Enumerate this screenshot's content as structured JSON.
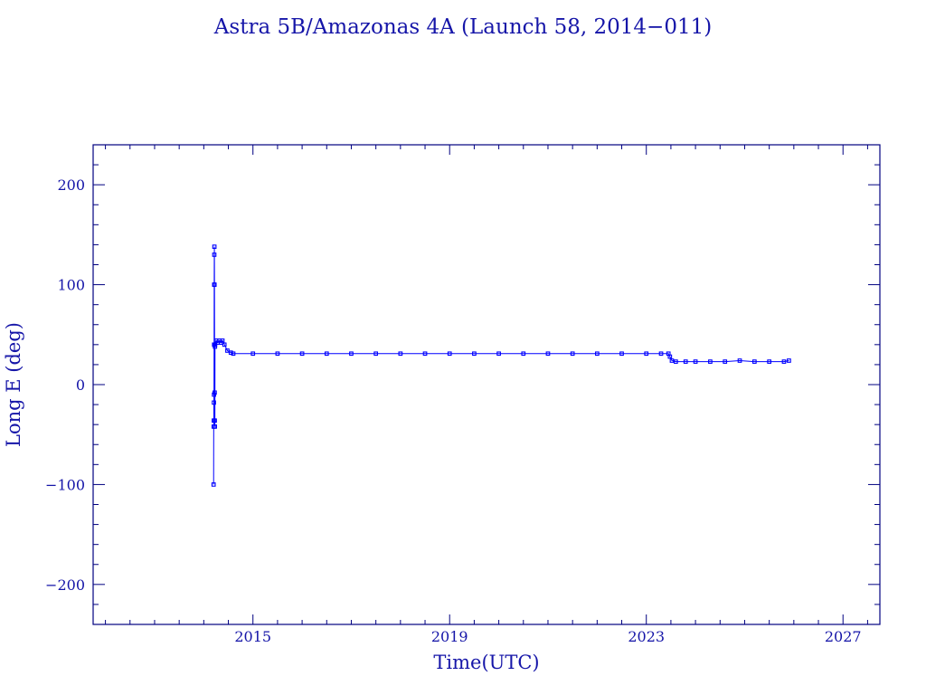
{
  "chart_data": {
    "type": "line",
    "title": "Astra 5B/Amazonas 4A (Launch 58, 2014−011)",
    "xlabel": "Time(UTC)",
    "ylabel": "Long E (deg)",
    "xlim": [
      2011.75,
      2027.75
    ],
    "ylim": [
      -240,
      240
    ],
    "x_ticks": [
      2015,
      2019,
      2023,
      2027
    ],
    "x_tick_labels": [
      "2015",
      "2019",
      "2023",
      "2027"
    ],
    "y_ticks": [
      200,
      100,
      0,
      -100,
      -200
    ],
    "y_tick_labels": [
      "200",
      "100",
      "0",
      "−100",
      "−200"
    ],
    "grid": false,
    "colors": {
      "axes": "#000080",
      "text": "#1515a8",
      "series": "#0000ff"
    },
    "series": [
      {
        "marker": "square",
        "x": [
          2014.2,
          2014.202,
          2014.204,
          2014.206,
          2014.208,
          2014.21,
          2014.212,
          2014.214,
          2014.216,
          2014.218,
          2014.22,
          2014.222,
          2014.224,
          2014.226,
          2014.228,
          2014.23,
          2014.25,
          2014.28,
          2014.32,
          2014.35,
          2014.38,
          2014.42,
          2014.48,
          2014.55,
          2014.6,
          2015.0,
          2015.5,
          2016.0,
          2016.5,
          2017.0,
          2017.5,
          2018.0,
          2018.5,
          2019.0,
          2019.5,
          2020.0,
          2020.5,
          2021.0,
          2021.5,
          2022.0,
          2022.5,
          2023.0,
          2023.3,
          2023.45,
          2023.48,
          2023.52,
          2023.6,
          2023.8,
          2024.0,
          2024.3,
          2024.6,
          2024.9,
          2025.2,
          2025.5,
          2025.8,
          2025.9
        ],
        "y": [
          -100,
          -42,
          -36,
          -18,
          -10,
          40,
          100,
          130,
          138,
          100,
          40,
          -8,
          -36,
          -42,
          38,
          40,
          44,
          42,
          44,
          42,
          44,
          40,
          34,
          32,
          31,
          31,
          31,
          31,
          31,
          31,
          31,
          31,
          31,
          31,
          31,
          31,
          31,
          31,
          31,
          31,
          31,
          31,
          31,
          31,
          28,
          24,
          23,
          23,
          23,
          23,
          23,
          24,
          23,
          23,
          23,
          24
        ]
      }
    ]
  }
}
